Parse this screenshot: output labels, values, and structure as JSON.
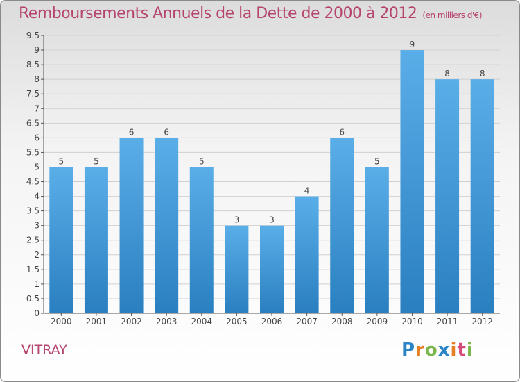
{
  "title": "Remboursements Annuels de la Dette de 2000 à 2012",
  "unit": "(en milliers d'€)",
  "location": "VITRAY",
  "logo": "Proxiti",
  "colors": {
    "accent": "#b5446e",
    "bar_top": "#5aaee8",
    "bar_bottom": "#2a7fc0",
    "grid": "#d0d0d0"
  },
  "chart_data": {
    "type": "bar",
    "title": "Remboursements Annuels de la Dette de 2000 à 2012",
    "xlabel": "",
    "ylabel": "",
    "categories": [
      "2000",
      "2001",
      "2002",
      "2003",
      "2004",
      "2005",
      "2006",
      "2007",
      "2008",
      "2009",
      "2010",
      "2011",
      "2012"
    ],
    "values": [
      5,
      5,
      6,
      6,
      5,
      3,
      3,
      4,
      6,
      5,
      9,
      8,
      8
    ],
    "data_labels": [
      "5",
      "5",
      "6",
      "6",
      "5",
      "3",
      "3",
      "4",
      "6",
      "5",
      "9",
      "8",
      "8"
    ],
    "ylim": [
      0,
      9.5
    ],
    "yticks": [
      "0",
      "0.5",
      "1",
      "1.5",
      "2",
      "2.5",
      "3",
      "3.5",
      "4",
      "4.5",
      "5",
      "5.5",
      "6",
      "6.5",
      "7",
      "7.5",
      "8",
      "8.5",
      "9",
      "9.5"
    ],
    "grid": true
  }
}
